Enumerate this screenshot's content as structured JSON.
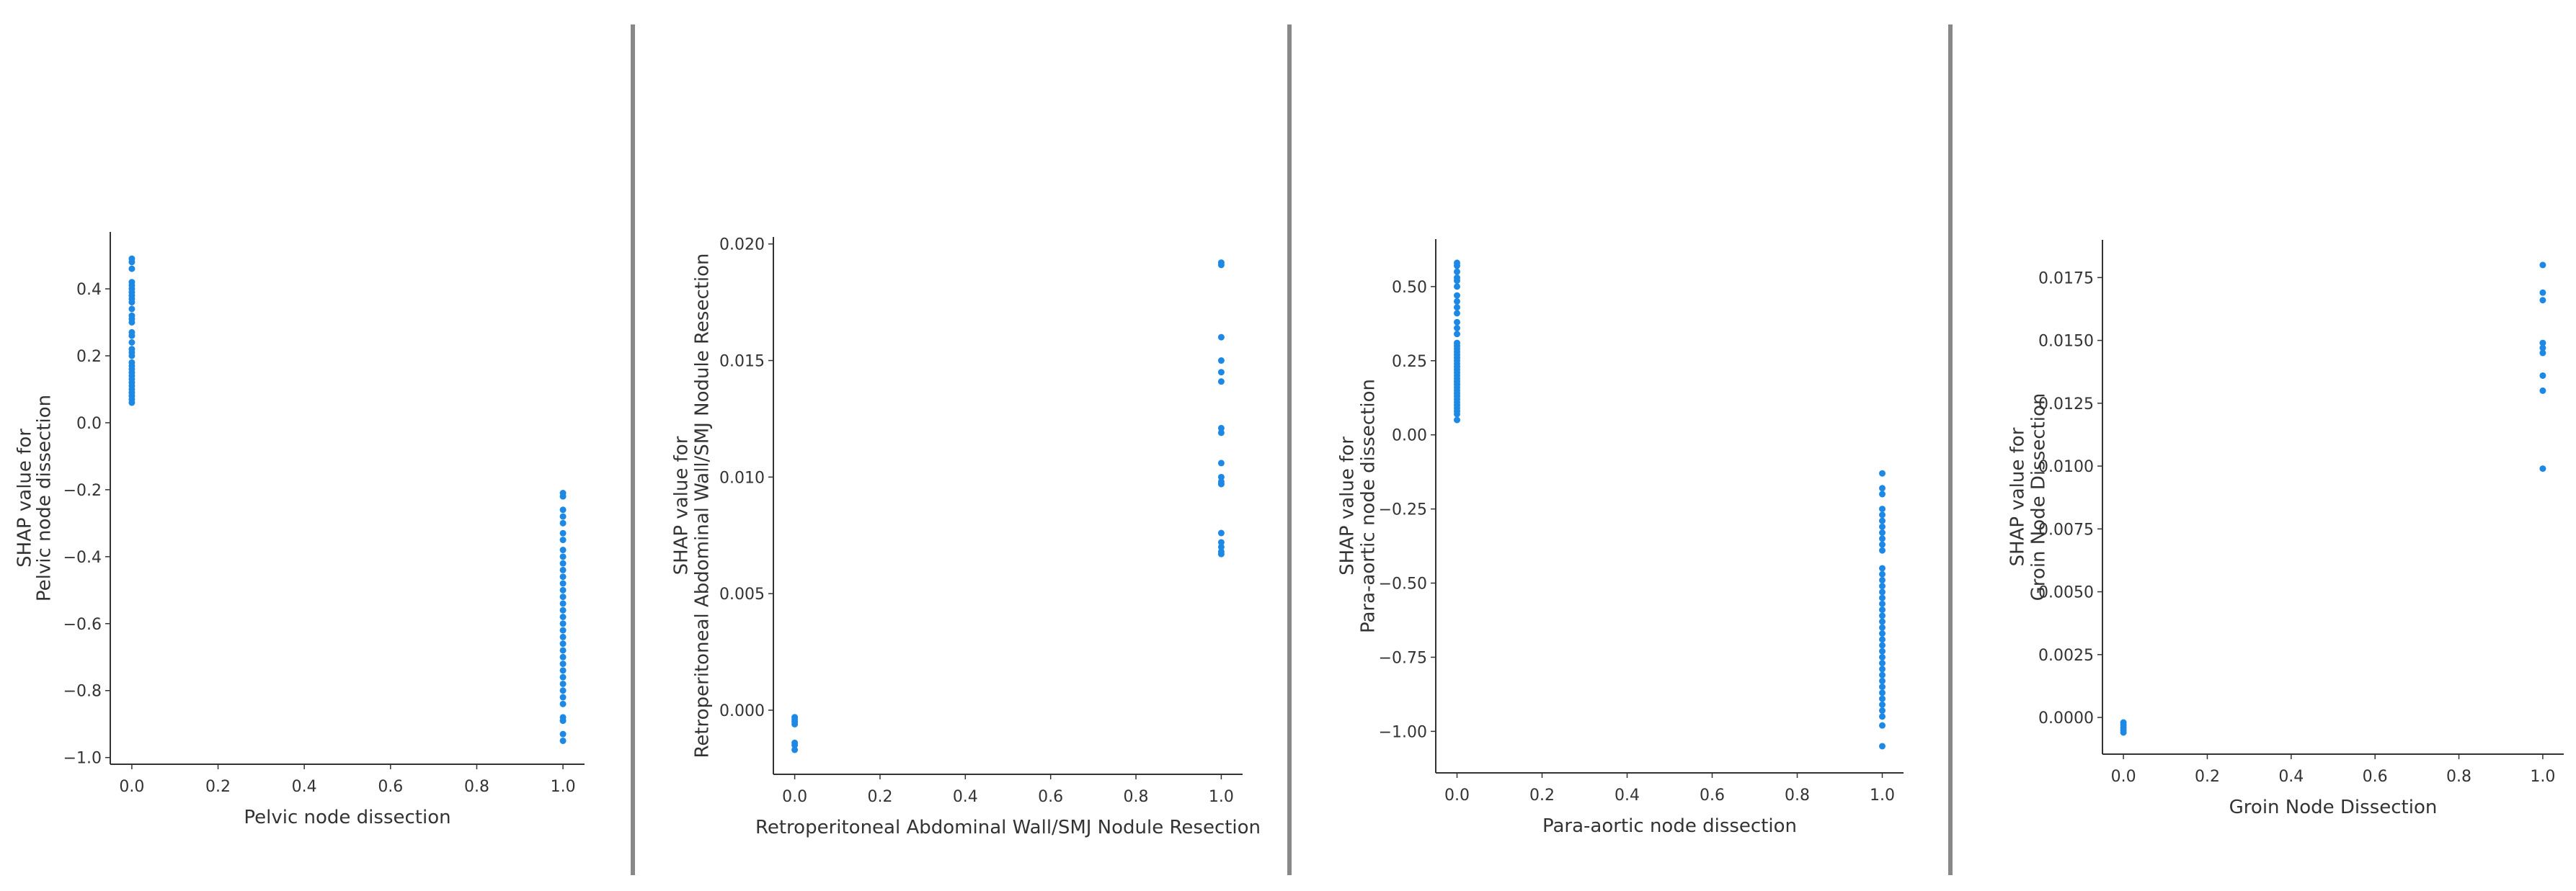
{
  "chart_data": [
    {
      "type": "scatter",
      "xlabel": "Pelvic node dissection",
      "ylabel": [
        "SHAP value for",
        "Pelvic node dissection"
      ],
      "xlim": [
        -0.05,
        1.05
      ],
      "ylim": [
        -1.02,
        0.57
      ],
      "xticks": [
        "0.0",
        "0.2",
        "0.4",
        "0.6",
        "0.8",
        "1.0"
      ],
      "xtick_values": [
        0,
        0.2,
        0.4,
        0.6,
        0.8,
        1.0
      ],
      "yticks": [
        "−1.0",
        "−0.8",
        "−0.6",
        "−0.4",
        "−0.2",
        "0.0",
        "0.2",
        "0.4"
      ],
      "ytick_values": [
        -1.0,
        -0.8,
        -0.6,
        -0.4,
        -0.2,
        0.0,
        0.2,
        0.4
      ],
      "grid": false,
      "color": "#1E88E5",
      "points": [
        {
          "x": 0,
          "y": [
            0.49,
            0.48,
            0.46,
            0.42,
            0.41,
            0.4,
            0.39,
            0.38,
            0.37,
            0.36,
            0.34,
            0.32,
            0.31,
            0.3,
            0.27,
            0.26,
            0.24,
            0.22,
            0.21,
            0.2,
            0.18,
            0.17,
            0.16,
            0.15,
            0.14,
            0.13,
            0.12,
            0.11,
            0.1,
            0.09,
            0.08,
            0.07,
            0.06
          ]
        },
        {
          "x": 1,
          "y": [
            -0.21,
            -0.22,
            -0.26,
            -0.28,
            -0.3,
            -0.33,
            -0.35,
            -0.38,
            -0.4,
            -0.42,
            -0.44,
            -0.46,
            -0.48,
            -0.5,
            -0.52,
            -0.54,
            -0.56,
            -0.58,
            -0.6,
            -0.62,
            -0.64,
            -0.66,
            -0.68,
            -0.7,
            -0.72,
            -0.74,
            -0.76,
            -0.78,
            -0.8,
            -0.82,
            -0.84,
            -0.88,
            -0.89,
            -0.93,
            -0.95
          ]
        }
      ]
    },
    {
      "type": "scatter",
      "xlabel": "Retroperitoneal Abdominal Wall/SMJ Nodule Resection",
      "ylabel": [
        "SHAP value for",
        "Retroperitoneal Abdominal Wall/SMJ Nodule Resection"
      ],
      "xlim": [
        -0.05,
        1.05
      ],
      "ylim": [
        -0.00275,
        0.0203
      ],
      "xticks": [
        "0.0",
        "0.2",
        "0.4",
        "0.6",
        "0.8",
        "1.0"
      ],
      "xtick_values": [
        0,
        0.2,
        0.4,
        0.6,
        0.8,
        1.0
      ],
      "yticks": [
        "0.000",
        "0.005",
        "0.010",
        "0.015",
        "0.020"
      ],
      "ytick_values": [
        0.0,
        0.005,
        0.01,
        0.015,
        0.02
      ],
      "grid": false,
      "color": "#1E88E5",
      "points": [
        {
          "x": 0,
          "y": [
            -0.0003,
            -0.0004,
            -0.0005,
            -0.0006,
            -0.0014,
            -0.0015,
            -0.0017
          ]
        },
        {
          "x": 1,
          "y": [
            0.0192,
            0.0191,
            0.016,
            0.015,
            0.0145,
            0.0141,
            0.0121,
            0.0119,
            0.0106,
            0.01,
            0.0098,
            0.0097,
            0.0076,
            0.0072,
            0.007,
            0.0068,
            0.0067
          ]
        }
      ]
    },
    {
      "type": "scatter",
      "xlabel": "Para-aortic node dissection",
      "ylabel": [
        "SHAP value for",
        "Para-aortic node dissection"
      ],
      "xlim": [
        -0.05,
        1.05
      ],
      "ylim": [
        -1.14,
        0.66
      ],
      "xticks": [
        "0.0",
        "0.2",
        "0.4",
        "0.6",
        "0.8",
        "1.0"
      ],
      "xtick_values": [
        0,
        0.2,
        0.4,
        0.6,
        0.8,
        1.0
      ],
      "yticks": [
        "−1.00",
        "−0.75",
        "−0.50",
        "−0.25",
        "0.00",
        "0.25",
        "0.50"
      ],
      "ytick_values": [
        -1.0,
        -0.75,
        -0.5,
        -0.25,
        0.0,
        0.25,
        0.5
      ],
      "grid": false,
      "color": "#1E88E5",
      "points": [
        {
          "x": 0,
          "y": [
            0.58,
            0.57,
            0.55,
            0.53,
            0.52,
            0.5,
            0.47,
            0.45,
            0.43,
            0.41,
            0.38,
            0.36,
            0.34,
            0.31,
            0.3,
            0.29,
            0.28,
            0.27,
            0.26,
            0.25,
            0.24,
            0.23,
            0.22,
            0.21,
            0.2,
            0.19,
            0.18,
            0.17,
            0.16,
            0.15,
            0.14,
            0.13,
            0.12,
            0.11,
            0.1,
            0.09,
            0.08,
            0.07,
            0.05
          ]
        },
        {
          "x": 1,
          "y": [
            -0.13,
            -0.18,
            -0.2,
            -0.25,
            -0.27,
            -0.29,
            -0.31,
            -0.33,
            -0.35,
            -0.37,
            -0.39,
            -0.45,
            -0.47,
            -0.49,
            -0.51,
            -0.53,
            -0.55,
            -0.57,
            -0.59,
            -0.61,
            -0.63,
            -0.65,
            -0.67,
            -0.69,
            -0.71,
            -0.73,
            -0.75,
            -0.77,
            -0.79,
            -0.81,
            -0.83,
            -0.85,
            -0.87,
            -0.89,
            -0.91,
            -0.93,
            -0.95,
            -0.98,
            -1.05
          ]
        }
      ]
    },
    {
      "type": "scatter",
      "xlabel": "Groin Node Dissection",
      "ylabel": [
        "SHAP value for",
        "Groin Node Dissection"
      ],
      "xlim": [
        -0.05,
        1.05
      ],
      "ylim": [
        -0.00146,
        0.019
      ],
      "xticks": [
        "0.0",
        "0.2",
        "0.4",
        "0.6",
        "0.8",
        "1.0"
      ],
      "xtick_values": [
        0,
        0.2,
        0.4,
        0.6,
        0.8,
        1.0
      ],
      "yticks": [
        "0.0000",
        "0.0025",
        "0.0050",
        "0.0075",
        "0.0100",
        "0.0125",
        "0.0150",
        "0.0175"
      ],
      "ytick_values": [
        0.0,
        0.0025,
        0.005,
        0.0075,
        0.01,
        0.0125,
        0.015,
        0.0175
      ],
      "grid": false,
      "color": "#1E88E5",
      "points": [
        {
          "x": 0,
          "y": [
            -0.0002,
            -0.0003,
            -0.0004,
            -0.0005,
            -0.0006
          ]
        },
        {
          "x": 1,
          "y": [
            0.018,
            0.0169,
            0.0166,
            0.0149,
            0.0147,
            0.0145,
            0.0136,
            0.013,
            0.0099
          ]
        }
      ]
    }
  ]
}
